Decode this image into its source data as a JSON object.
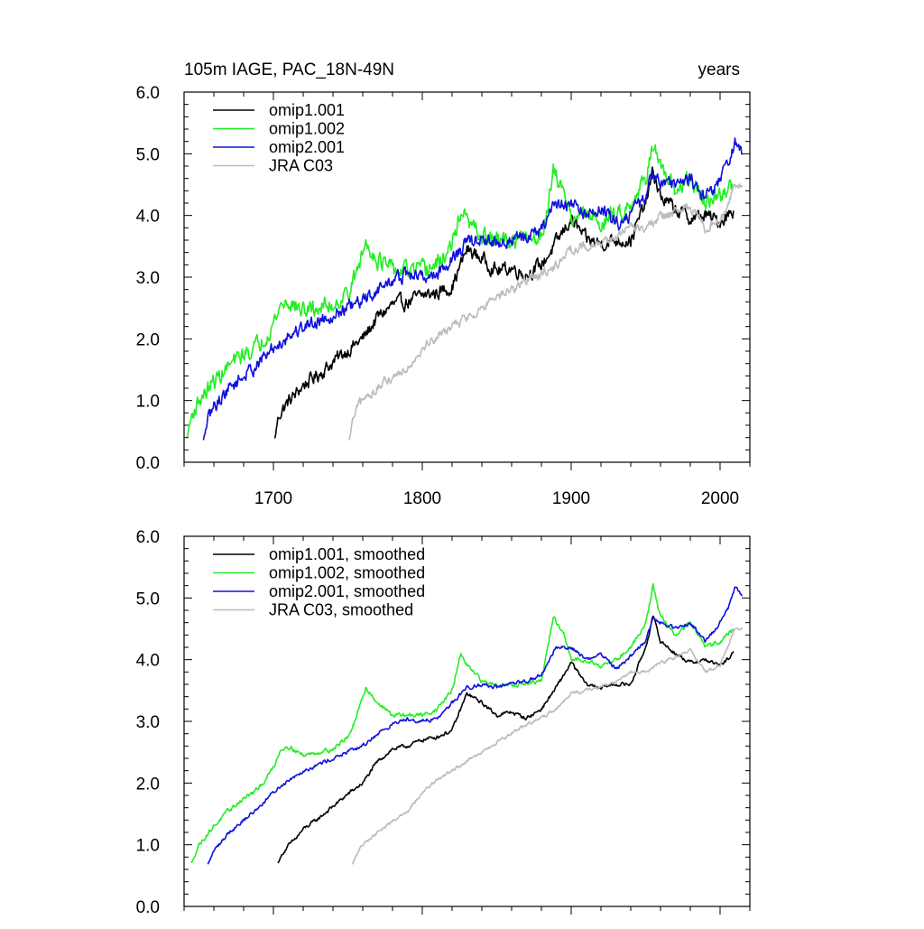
{
  "colors": {
    "omip1_001": "#000000",
    "omip1_002": "#22ee22",
    "omip2_001": "#1010dd",
    "jra_c03": "#bbbbbb"
  },
  "chart_data": [
    {
      "type": "line",
      "title": "105m IAGE, PAC_18N-49N",
      "units": "years",
      "xlim": [
        1640,
        2020
      ],
      "ylim": [
        0,
        6
      ],
      "x_ticks": [
        "1700",
        "1800",
        "1900",
        "2000"
      ],
      "y_ticks": [
        "0.0",
        "1.0",
        "2.0",
        "3.0",
        "4.0",
        "5.0",
        "6.0"
      ],
      "legend_position": "top-left",
      "grid": false,
      "series": [
        {
          "name": "omip1.001",
          "color_key": "omip1_001",
          "noise": 0.13,
          "x": [
            1701,
            1703,
            1706,
            1710,
            1715,
            1720,
            1730,
            1740,
            1750,
            1760,
            1770,
            1780,
            1790,
            1800,
            1810,
            1820,
            1830,
            1840,
            1850,
            1860,
            1870,
            1880,
            1890,
            1900,
            1910,
            1920,
            1930,
            1940,
            1950,
            1955,
            1960,
            1970,
            1980,
            1990,
            2000,
            2009
          ],
          "y": [
            0.38,
            0.7,
            0.85,
            0.98,
            1.1,
            1.25,
            1.42,
            1.62,
            1.82,
            2.0,
            2.35,
            2.55,
            2.6,
            2.7,
            2.75,
            2.85,
            3.45,
            3.3,
            3.1,
            3.15,
            3.05,
            3.2,
            3.55,
            3.95,
            3.6,
            3.55,
            3.6,
            3.6,
            4.2,
            4.7,
            4.3,
            4.1,
            3.95,
            4.0,
            3.9,
            4.1
          ]
        },
        {
          "name": "omip1.002",
          "color_key": "omip1_002",
          "noise": 0.16,
          "x": [
            1642,
            1645,
            1650,
            1655,
            1660,
            1670,
            1680,
            1690,
            1700,
            1705,
            1710,
            1720,
            1730,
            1740,
            1750,
            1755,
            1762,
            1770,
            1780,
            1790,
            1800,
            1810,
            1820,
            1826,
            1830,
            1840,
            1850,
            1860,
            1870,
            1880,
            1888,
            1895,
            1900,
            1910,
            1920,
            1930,
            1940,
            1950,
            1955,
            1960,
            1970,
            1980,
            1990,
            2000,
            2009
          ],
          "y": [
            0.4,
            0.75,
            1.0,
            1.15,
            1.3,
            1.55,
            1.75,
            1.9,
            2.25,
            2.55,
            2.6,
            2.45,
            2.5,
            2.55,
            2.75,
            3.0,
            3.55,
            3.3,
            3.1,
            3.1,
            3.1,
            3.2,
            3.5,
            4.1,
            3.9,
            3.65,
            3.6,
            3.6,
            3.6,
            3.65,
            4.7,
            4.4,
            4.0,
            4.0,
            3.9,
            4.0,
            4.2,
            4.6,
            5.2,
            4.7,
            4.4,
            4.6,
            4.2,
            4.3,
            4.5
          ]
        },
        {
          "name": "omip2.001",
          "color_key": "omip2_001",
          "noise": 0.13,
          "x": [
            1653,
            1656,
            1660,
            1665,
            1670,
            1680,
            1690,
            1700,
            1710,
            1720,
            1730,
            1740,
            1750,
            1760,
            1770,
            1780,
            1790,
            1800,
            1810,
            1820,
            1830,
            1840,
            1850,
            1860,
            1870,
            1880,
            1890,
            1900,
            1910,
            1920,
            1930,
            1940,
            1950,
            1955,
            1960,
            1970,
            1980,
            1990,
            2000,
            2005,
            2010,
            2015
          ],
          "y": [
            0.35,
            0.7,
            0.9,
            1.05,
            1.2,
            1.4,
            1.6,
            1.85,
            2.05,
            2.2,
            2.3,
            2.4,
            2.5,
            2.6,
            2.8,
            2.95,
            3.05,
            3.0,
            3.05,
            3.3,
            3.55,
            3.6,
            3.55,
            3.6,
            3.65,
            3.75,
            4.2,
            4.2,
            4.0,
            4.1,
            3.85,
            4.05,
            4.3,
            4.7,
            4.6,
            4.5,
            4.6,
            4.3,
            4.6,
            4.8,
            5.15,
            5.05
          ]
        },
        {
          "name": "JRA C03",
          "color_key": "jra_c03",
          "noise": 0.09,
          "x": [
            1751,
            1753,
            1756,
            1760,
            1765,
            1770,
            1780,
            1790,
            1800,
            1810,
            1820,
            1830,
            1840,
            1850,
            1860,
            1870,
            1880,
            1890,
            1900,
            1910,
            1920,
            1930,
            1940,
            1950,
            1960,
            1970,
            1980,
            1990,
            2000,
            2010,
            2015
          ],
          "y": [
            0.35,
            0.65,
            0.85,
            1.0,
            1.1,
            1.2,
            1.38,
            1.55,
            1.85,
            2.05,
            2.2,
            2.35,
            2.5,
            2.65,
            2.8,
            2.95,
            3.05,
            3.2,
            3.45,
            3.5,
            3.55,
            3.65,
            3.8,
            3.8,
            3.95,
            4.05,
            4.15,
            3.8,
            3.9,
            4.5,
            4.5
          ]
        }
      ]
    },
    {
      "type": "line",
      "title": "",
      "units": "",
      "xlim": [
        1640,
        2020
      ],
      "ylim": [
        0,
        6
      ],
      "x_ticks": [],
      "y_ticks": [
        "0.0",
        "1.0",
        "2.0",
        "3.0",
        "4.0",
        "5.0",
        "6.0"
      ],
      "legend_position": "top-left",
      "grid": false,
      "series": [
        {
          "name": "omip1.001, smoothed",
          "color_key": "omip1_001",
          "noise": 0.035,
          "x": [
            1703,
            1706,
            1710,
            1715,
            1720,
            1730,
            1740,
            1750,
            1760,
            1770,
            1780,
            1790,
            1800,
            1810,
            1820,
            1830,
            1840,
            1850,
            1860,
            1870,
            1880,
            1890,
            1900,
            1910,
            1920,
            1930,
            1940,
            1950,
            1955,
            1960,
            1970,
            1980,
            1990,
            2000,
            2009
          ],
          "y": [
            0.7,
            0.85,
            0.98,
            1.1,
            1.25,
            1.42,
            1.62,
            1.82,
            2.0,
            2.35,
            2.55,
            2.6,
            2.7,
            2.75,
            2.85,
            3.45,
            3.3,
            3.1,
            3.15,
            3.05,
            3.2,
            3.55,
            3.95,
            3.6,
            3.55,
            3.6,
            3.6,
            4.2,
            4.7,
            4.3,
            4.1,
            3.95,
            4.0,
            3.9,
            4.1
          ]
        },
        {
          "name": "omip1.002, smoothed",
          "color_key": "omip1_002",
          "noise": 0.04,
          "x": [
            1645,
            1650,
            1655,
            1660,
            1670,
            1680,
            1690,
            1700,
            1705,
            1710,
            1720,
            1730,
            1740,
            1750,
            1755,
            1762,
            1770,
            1780,
            1790,
            1800,
            1810,
            1820,
            1826,
            1830,
            1840,
            1850,
            1860,
            1870,
            1880,
            1888,
            1895,
            1900,
            1910,
            1920,
            1930,
            1940,
            1950,
            1955,
            1960,
            1970,
            1980,
            1990,
            2000,
            2009
          ],
          "y": [
            0.7,
            1.0,
            1.15,
            1.3,
            1.55,
            1.75,
            1.9,
            2.25,
            2.55,
            2.6,
            2.45,
            2.5,
            2.55,
            2.75,
            3.0,
            3.55,
            3.3,
            3.1,
            3.1,
            3.1,
            3.2,
            3.5,
            4.1,
            3.9,
            3.65,
            3.6,
            3.6,
            3.6,
            3.65,
            4.7,
            4.4,
            4.0,
            4.0,
            3.9,
            4.0,
            4.2,
            4.6,
            5.2,
            4.7,
            4.4,
            4.6,
            4.2,
            4.3,
            4.5
          ]
        },
        {
          "name": "omip2.001, smoothed",
          "color_key": "omip2_001",
          "noise": 0.035,
          "x": [
            1656,
            1660,
            1665,
            1670,
            1680,
            1690,
            1700,
            1710,
            1720,
            1730,
            1740,
            1750,
            1760,
            1770,
            1780,
            1790,
            1800,
            1810,
            1820,
            1830,
            1840,
            1850,
            1860,
            1870,
            1880,
            1890,
            1900,
            1910,
            1920,
            1930,
            1940,
            1950,
            1955,
            1960,
            1970,
            1980,
            1990,
            2000,
            2005,
            2010,
            2015
          ],
          "y": [
            0.68,
            0.9,
            1.05,
            1.2,
            1.4,
            1.6,
            1.85,
            2.05,
            2.2,
            2.3,
            2.4,
            2.5,
            2.6,
            2.8,
            2.95,
            3.05,
            3.0,
            3.05,
            3.3,
            3.55,
            3.6,
            3.55,
            3.6,
            3.65,
            3.75,
            4.2,
            4.2,
            4.0,
            4.1,
            3.85,
            4.05,
            4.3,
            4.7,
            4.6,
            4.5,
            4.6,
            4.3,
            4.6,
            4.8,
            5.15,
            5.05
          ]
        },
        {
          "name": "JRA C03, smoothed",
          "color_key": "jra_c03",
          "noise": 0.03,
          "x": [
            1753,
            1756,
            1760,
            1765,
            1770,
            1780,
            1790,
            1800,
            1810,
            1820,
            1830,
            1840,
            1850,
            1860,
            1870,
            1880,
            1890,
            1900,
            1910,
            1920,
            1930,
            1940,
            1950,
            1960,
            1970,
            1980,
            1990,
            2000,
            2010,
            2015
          ],
          "y": [
            0.68,
            0.85,
            1.0,
            1.1,
            1.2,
            1.38,
            1.55,
            1.85,
            2.05,
            2.2,
            2.35,
            2.5,
            2.65,
            2.8,
            2.95,
            3.05,
            3.2,
            3.45,
            3.5,
            3.55,
            3.65,
            3.8,
            3.8,
            3.95,
            4.05,
            4.15,
            3.8,
            3.9,
            4.5,
            4.5
          ]
        }
      ]
    }
  ]
}
